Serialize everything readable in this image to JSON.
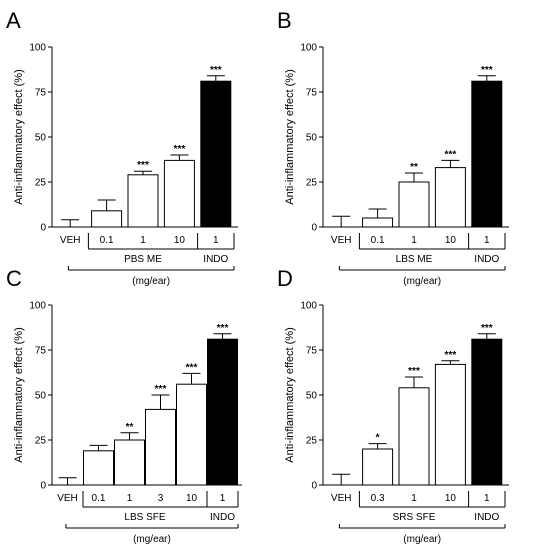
{
  "colors": {
    "axis": "#000000",
    "bar_open": "#ffffff",
    "bar_filled": "#000000"
  },
  "chart_data": [
    {
      "panel": "A",
      "type": "bar",
      "ylabel": "Anti-inflammatory effect (%)",
      "ylim": [
        0,
        100
      ],
      "yticks": [
        0,
        25,
        50,
        75,
        100
      ],
      "categories": [
        "VEH",
        "0.1",
        "1",
        "10",
        "1"
      ],
      "values": [
        0,
        9,
        29,
        37,
        81
      ],
      "errors": [
        4,
        6,
        2,
        3,
        3
      ],
      "fills": [
        "none",
        "white",
        "white",
        "white",
        "black"
      ],
      "significance": [
        "",
        "",
        "***",
        "***",
        "***"
      ],
      "group_labels": {
        "test": "PBS ME",
        "ref": "INDO"
      },
      "unit": "(mg/ear)"
    },
    {
      "panel": "B",
      "type": "bar",
      "ylabel": "Anti-inflammatory effect (%)",
      "ylim": [
        0,
        100
      ],
      "yticks": [
        0,
        25,
        50,
        75,
        100
      ],
      "categories": [
        "VEH",
        "0.1",
        "1",
        "10",
        "1"
      ],
      "values": [
        0,
        5,
        25,
        33,
        81
      ],
      "errors": [
        6,
        5,
        5,
        4,
        3
      ],
      "fills": [
        "none",
        "white",
        "white",
        "white",
        "black"
      ],
      "significance": [
        "",
        "",
        "**",
        "***",
        "***"
      ],
      "group_labels": {
        "test": "LBS ME",
        "ref": "INDO"
      },
      "unit": "(mg/ear)"
    },
    {
      "panel": "C",
      "type": "bar",
      "ylabel": "Anti-inflammatory effect (%)",
      "ylim": [
        0,
        100
      ],
      "yticks": [
        0,
        25,
        50,
        75,
        100
      ],
      "categories": [
        "VEH",
        "0.1",
        "1",
        "3",
        "10",
        "1"
      ],
      "values": [
        0,
        19,
        25,
        42,
        56,
        81
      ],
      "errors": [
        4,
        3,
        4,
        8,
        6,
        3
      ],
      "fills": [
        "none",
        "white",
        "white",
        "white",
        "white",
        "black"
      ],
      "significance": [
        "",
        "",
        "**",
        "***",
        "***",
        "***"
      ],
      "group_labels": {
        "test": "LBS SFE",
        "ref": "INDO"
      },
      "unit": "(mg/ear)"
    },
    {
      "panel": "D",
      "type": "bar",
      "ylabel": "Anti-inflammatory effect (%)",
      "ylim": [
        0,
        100
      ],
      "yticks": [
        0,
        25,
        50,
        75,
        100
      ],
      "categories": [
        "VEH",
        "0.3",
        "1",
        "10",
        "1"
      ],
      "values": [
        0,
        20,
        54,
        67,
        81
      ],
      "errors": [
        6,
        3,
        6,
        2,
        3
      ],
      "fills": [
        "none",
        "white",
        "white",
        "white",
        "black"
      ],
      "significance": [
        "",
        "*",
        "***",
        "***",
        "***"
      ],
      "group_labels": {
        "test": "SRS SFE",
        "ref": "INDO"
      },
      "unit": "(mg/ear)"
    }
  ]
}
